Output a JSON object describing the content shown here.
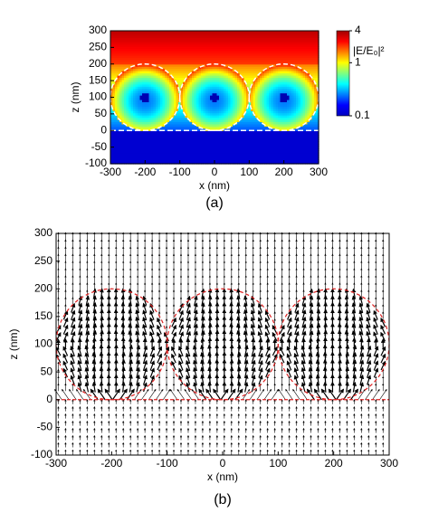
{
  "chart_data": [
    {
      "type": "heatmap",
      "xlabel": "x (nm)",
      "ylabel": "z (nm)",
      "caption": "(a)",
      "xlim": [
        -300,
        300
      ],
      "ylim": [
        -100,
        300
      ],
      "xticks": [
        -300,
        -200,
        -100,
        0,
        100,
        200,
        300
      ],
      "yticks": [
        -100,
        -50,
        0,
        50,
        100,
        150,
        200,
        250,
        300
      ],
      "colorbar": {
        "label": "|E/E₀|²",
        "lim": [
          0.1,
          4
        ],
        "ticks": [
          0.1,
          1,
          4
        ],
        "log": true
      }
    },
    {
      "type": "quiver",
      "xlabel": "x (nm)",
      "ylabel": "z (nm)",
      "caption": "(b)",
      "xlim": [
        -300,
        300
      ],
      "ylim": [
        -100,
        300
      ],
      "xticks": [
        -300,
        -200,
        -100,
        0,
        100,
        200,
        300
      ],
      "yticks": [
        -100,
        -50,
        0,
        50,
        100,
        150,
        200,
        250,
        300
      ]
    }
  ]
}
